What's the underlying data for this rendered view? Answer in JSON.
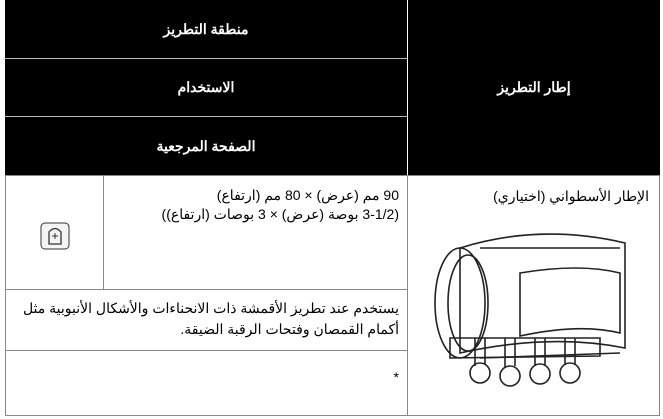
{
  "header": {
    "frame": "إطار التطريز",
    "area": "منطقة التطريز",
    "usage": "الاستخدام",
    "reference": "الصفحة المرجعية"
  },
  "row": {
    "frame_name": "الإطار الأسطواني (اختياري)",
    "size": [
      "90 مم (عرض) × 80 مم (ارتفاع)",
      "(3-1/2 بوصة (عرض) × 3 بوصات (ارتفاع))"
    ],
    "usage": "يستخدم عند تطريز الأقمشة ذات الانحناءات والأشكال الأنبوبية مثل أكمام القمصان وفتحات الرقبة الضيقة.",
    "reference": "*"
  }
}
